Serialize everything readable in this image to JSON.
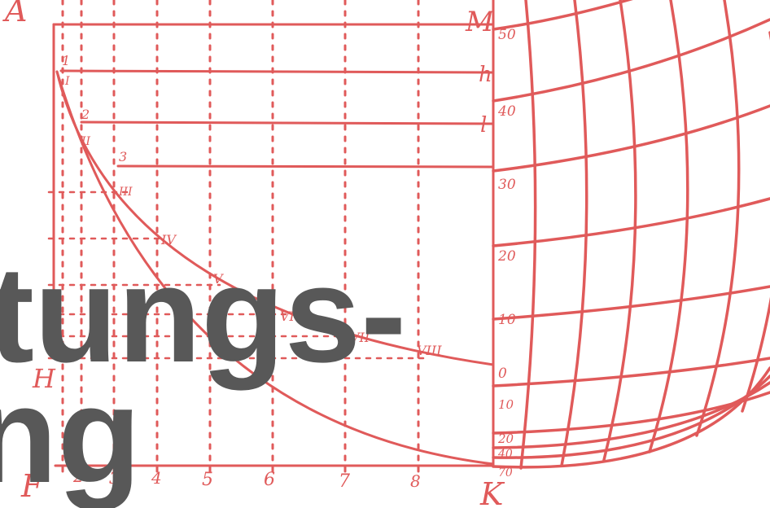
{
  "colors": {
    "ink": "#e05a5a",
    "overlay_text": "#585858",
    "background": "#ffffff"
  },
  "overlay": {
    "line1": "tungs-",
    "line2": "ng"
  },
  "letters": {
    "A": "A",
    "M": "M",
    "h": "h",
    "l": "l",
    "H": "H",
    "F": "F",
    "K": "K"
  },
  "small_numbers": [
    "1",
    "2",
    "3"
  ],
  "roman": [
    "I",
    "II",
    "III",
    "IV",
    "V",
    "VI",
    "VII",
    "VIII"
  ],
  "bottom_ticks": [
    "2",
    "3",
    "4",
    "5",
    "6",
    "7",
    "8"
  ],
  "degree_labels": [
    "50",
    "40",
    "30",
    "20",
    "10",
    "0",
    "10",
    "20",
    "40",
    "70"
  ]
}
